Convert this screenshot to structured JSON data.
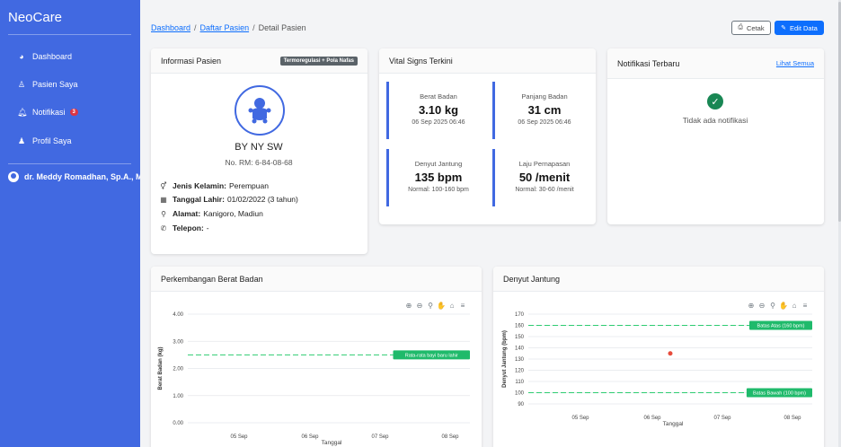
{
  "sidebar": {
    "brand": "NeoCare",
    "items": [
      {
        "label": "Dashboard"
      },
      {
        "label": "Pasien Saya"
      },
      {
        "label": "Notifikasi",
        "badge": "3"
      },
      {
        "label": "Profil Saya"
      }
    ],
    "user": "dr. Meddy Romadhan, Sp.A., M"
  },
  "breadcrumb": {
    "items": [
      "Dashboard",
      "Daftar Pasien"
    ],
    "current": "Detail Pasien"
  },
  "actions": {
    "print": "Cetak",
    "edit": "Edit Data"
  },
  "patient_card": {
    "title": "Informasi Pasien",
    "tag": "Termoregulasi + Pola Nafas",
    "name": "BY NY SW",
    "rm": "No. RM: 6-84-08-68",
    "rows": [
      {
        "label": "Jenis Kelamin:",
        "value": "Perempuan"
      },
      {
        "label": "Tanggal Lahir:",
        "value": "01/02/2022 (3 tahun)"
      },
      {
        "label": "Alamat:",
        "value": "Kanigoro, Madiun"
      },
      {
        "label": "Telepon:",
        "value": "-"
      }
    ]
  },
  "vitals": {
    "title": "Vital Signs Terkini",
    "items": [
      {
        "label": "Berat Badan",
        "value": "3.10 kg",
        "sub": "06 Sep 2025 06:46"
      },
      {
        "label": "Panjang Badan",
        "value": "31 cm",
        "sub": "06 Sep 2025 06:46"
      },
      {
        "label": "Denyut Jantung",
        "value": "135 bpm",
        "sub": "Normal: 100-160 bpm"
      },
      {
        "label": "Laju Pernapasan",
        "value": "50 /menit",
        "sub": "Normal: 30-60 /menit"
      }
    ]
  },
  "notifications": {
    "title": "Notifikasi Terbaru",
    "link": "Lihat Semua",
    "empty": "Tidak ada notifikasi"
  },
  "colors": {
    "primary": "#4169e1",
    "link": "#0d6efd",
    "success": "#198754",
    "badge_bg": "#1fba6b",
    "ref_line": "#2ecc71",
    "point": "#e74c3c"
  },
  "chart_data": [
    {
      "type": "line",
      "title": "Perkembangan Berat Badan",
      "ylabel": "Berat Badan (kg)",
      "xlabel": "Tanggal",
      "x_ticks": [
        "05 Sep",
        "06 Sep",
        "07 Sep",
        "08 Sep"
      ],
      "y_ticks": [
        "4.00",
        "3.00",
        "2.00",
        "1.00",
        "0.00"
      ],
      "ylim": [
        0,
        4
      ],
      "series": [],
      "reference_lines": [
        {
          "label": "Rata-rata bayi baru lahir",
          "value": 2.5
        }
      ]
    },
    {
      "type": "scatter",
      "title": "Denyut Jantung",
      "ylabel": "Denyut Jantung (bpm)",
      "xlabel": "Tanggal",
      "x_ticks": [
        "05 Sep",
        "06 Sep",
        "07 Sep",
        "08 Sep"
      ],
      "y_ticks": [
        "170",
        "160",
        "150",
        "140",
        "130",
        "120",
        "110",
        "100",
        "90"
      ],
      "ylim": [
        90,
        170
      ],
      "series": [
        {
          "name": "Denyut Jantung",
          "points": [
            {
              "x": 1.25,
              "y": 135
            }
          ]
        }
      ],
      "reference_lines": [
        {
          "label": "Batas Atas (160 bpm)",
          "value": 160
        },
        {
          "label": "Batas Bawah (100 bpm)",
          "value": 100
        }
      ]
    }
  ]
}
